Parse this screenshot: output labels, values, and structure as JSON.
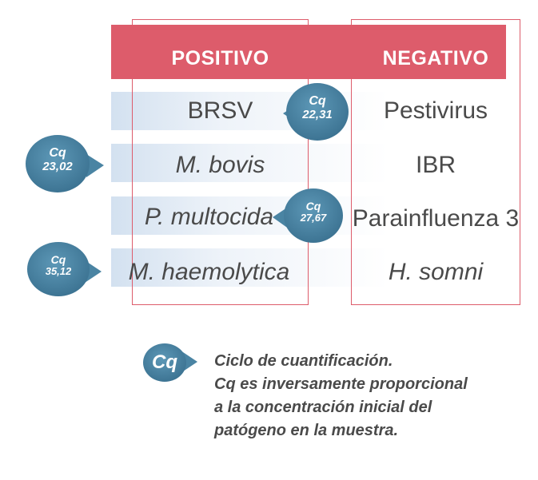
{
  "table": {
    "headers": {
      "positive": "POSITIVO",
      "negative": "NEGATIVO"
    },
    "rows": [
      {
        "positive": "BRSV",
        "negative": "Pestivirus"
      },
      {
        "positive": "M. bovis",
        "negative": "IBR"
      },
      {
        "positive": "P. multocida",
        "negative": "Parainfluenza 3"
      },
      {
        "positive": "M. haemolytica",
        "negative": "H. somni"
      }
    ]
  },
  "badges": [
    {
      "label": "Cq",
      "value": "22,31",
      "target": "BRSV"
    },
    {
      "label": "Cq",
      "value": "23,02",
      "target": "M. bovis"
    },
    {
      "label": "Cq",
      "value": "27,67",
      "target": "P. multocida"
    },
    {
      "label": "Cq",
      "value": "35,12",
      "target": "M. haemolytica"
    }
  ],
  "legend": {
    "badge_label": "Cq",
    "lines": [
      "Ciclo de cuantificación.",
      "Cq es inversamente proporcional",
      "a la concentración inicial del",
      "patógeno en la muestra."
    ]
  },
  "colors": {
    "header": "#dd5c6b",
    "badge": "#4a84a3",
    "text": "#4a4a4a"
  }
}
